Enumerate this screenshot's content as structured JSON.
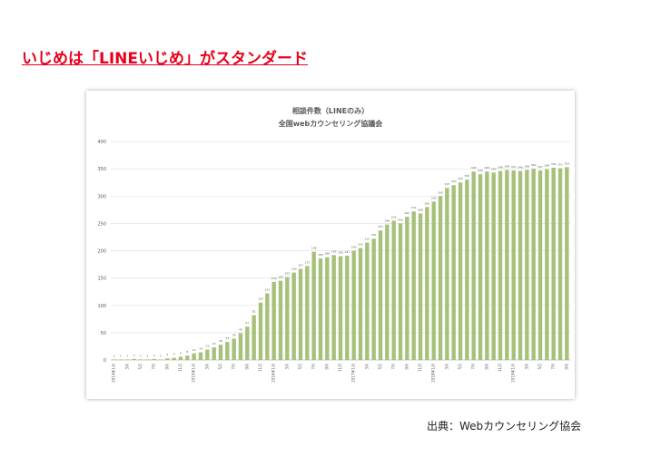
{
  "heading": "いじめは「LINEいじめ」がスタンダード",
  "caption": "出典：Webカウンセリング協会",
  "chart_data": {
    "type": "bar",
    "title": "相談件数（LINEのみ）",
    "subtitle": "全国webカウンセリング協議会",
    "categories": [
      "2014年1月",
      null,
      "3月",
      null,
      "5月",
      null,
      "7月",
      null,
      "9月",
      null,
      "11月",
      null,
      "2015年1月",
      null,
      "3月",
      null,
      "5月",
      null,
      "7月",
      null,
      "9月",
      null,
      "11月",
      null,
      "2016年1月",
      null,
      "3月",
      null,
      "5月",
      null,
      "7月",
      null,
      "9月",
      null,
      "11月",
      null,
      "2017年1月",
      null,
      "3月",
      null,
      "5月",
      null,
      "7月",
      null,
      "9月",
      null,
      "11月",
      null,
      "2018年1月",
      null,
      "3月",
      null,
      "5月",
      null,
      "7月",
      null,
      "9月",
      null,
      "11月",
      null,
      "2019年1月",
      null,
      "3月",
      null,
      "5月",
      null,
      "7月",
      null,
      "9月"
    ],
    "values": [
      1,
      1,
      1,
      2,
      1,
      1,
      2,
      1,
      3,
      4,
      6,
      8,
      12,
      14,
      19,
      23,
      28,
      33,
      39,
      49,
      61,
      82,
      105,
      122,
      143,
      145,
      152,
      160,
      167,
      172,
      198,
      186,
      188,
      192,
      190,
      191,
      200,
      205,
      215,
      222,
      237,
      248,
      255,
      250,
      262,
      272,
      268,
      280,
      290,
      300,
      315,
      320,
      325,
      330,
      345,
      340,
      345,
      343,
      346,
      348,
      347,
      346,
      348,
      350,
      347,
      349,
      352,
      351,
      353
    ],
    "color": "#a6c27a",
    "ylim": [
      0,
      400
    ],
    "yticks": [
      0,
      50,
      100,
      150,
      200,
      250,
      300,
      350,
      400
    ],
    "grid": true
  }
}
